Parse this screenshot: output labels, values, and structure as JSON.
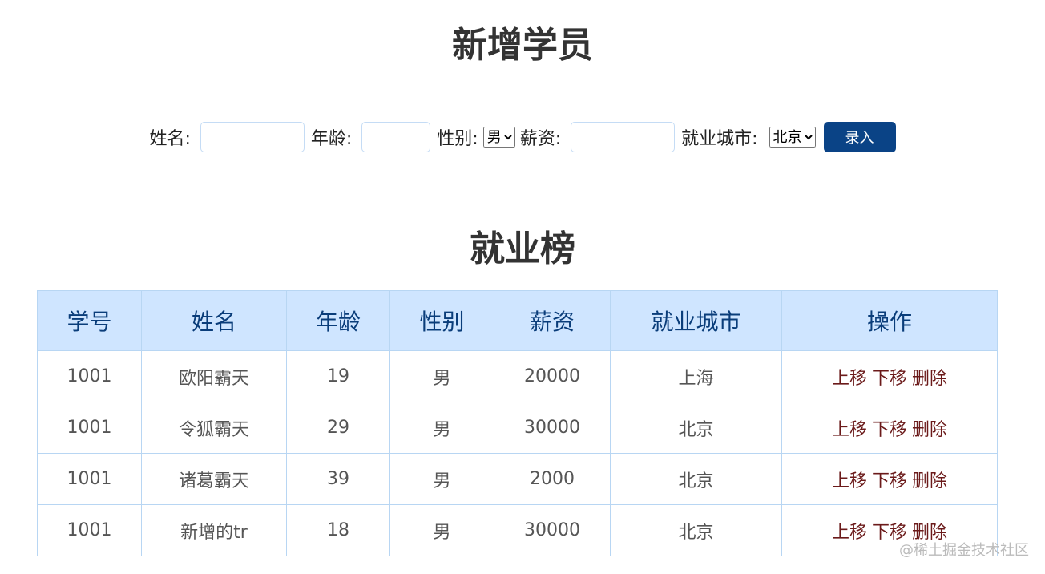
{
  "title": "新增学员",
  "form": {
    "name_label": "姓名:",
    "age_label": "年龄:",
    "gender_label": "性别:",
    "gender_value": "男",
    "salary_label": "薪资:",
    "city_label": "就业城市:",
    "city_value": "北京",
    "submit": "录入"
  },
  "list_title": "就业榜",
  "table": {
    "headers": [
      "学号",
      "姓名",
      "年龄",
      "性别",
      "薪资",
      "就业城市",
      "操作"
    ],
    "rows": [
      [
        "1001",
        "欧阳霸天",
        "19",
        "男",
        "20000",
        "上海"
      ],
      [
        "1001",
        "令狐霸天",
        "29",
        "男",
        "30000",
        "北京"
      ],
      [
        "1001",
        "诸葛霸天",
        "39",
        "男",
        "2000",
        "北京"
      ],
      [
        "1001",
        "新增的tr",
        "18",
        "男",
        "30000",
        "北京"
      ]
    ],
    "actions": [
      "上移",
      "下移",
      "删除"
    ]
  },
  "watermark": "@稀土掘金技术社区"
}
